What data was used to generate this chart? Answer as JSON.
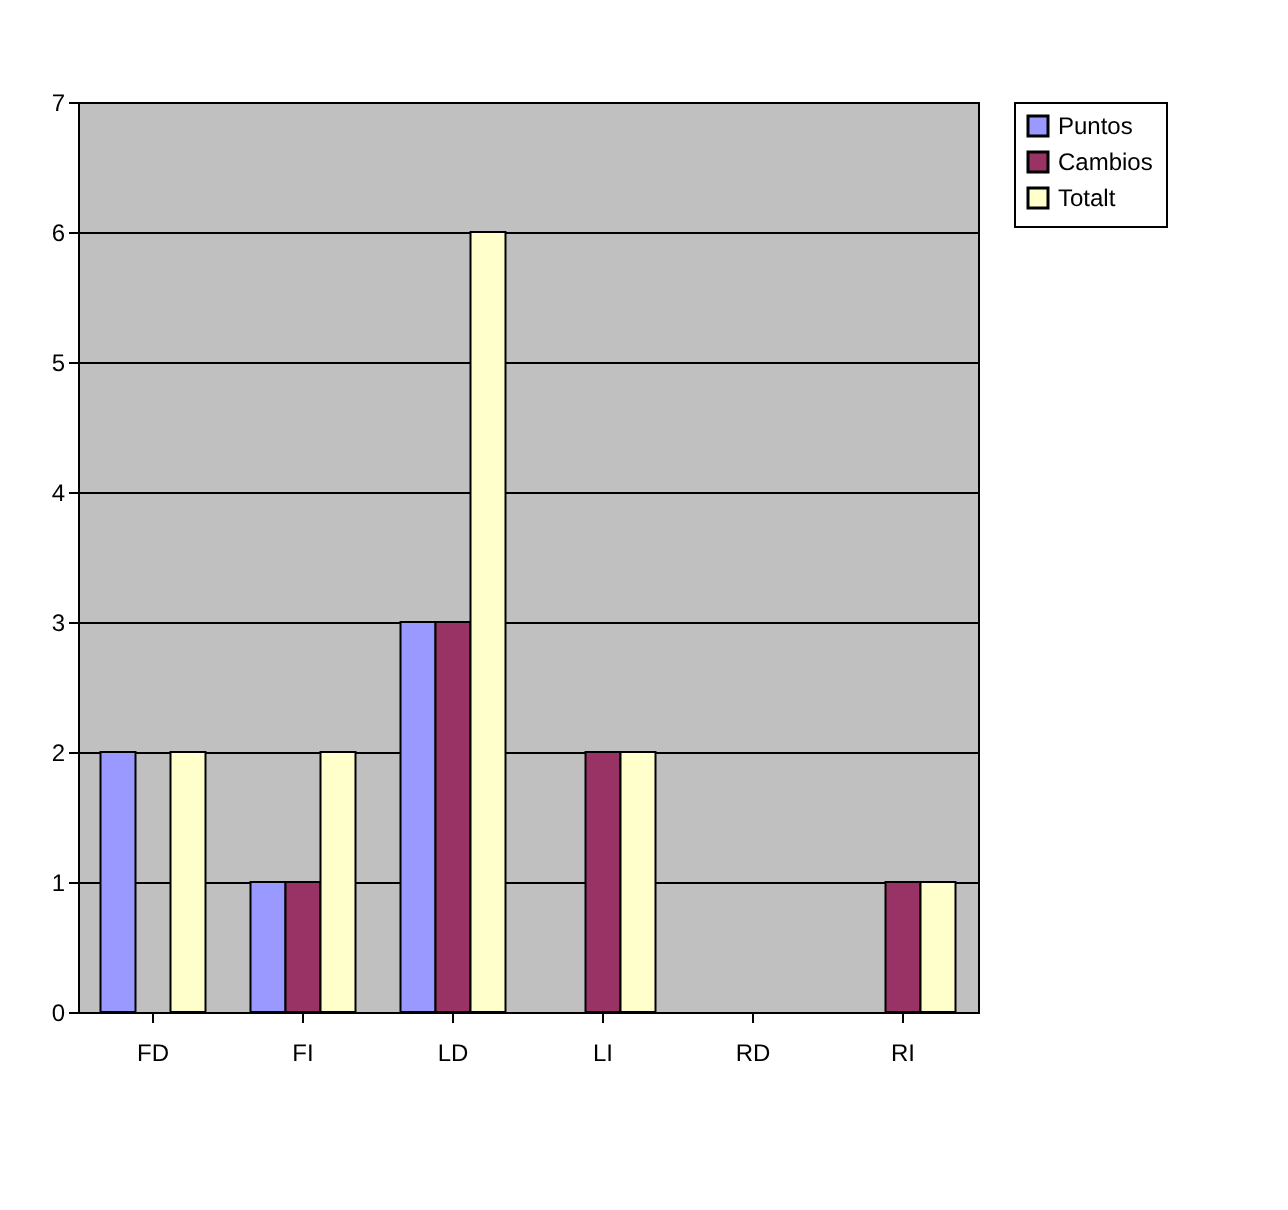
{
  "chart_data": {
    "type": "bar",
    "categories": [
      "FD",
      "FI",
      "LD",
      "LI",
      "RD",
      "RI"
    ],
    "series": [
      {
        "name": "Puntos",
        "color": "#9999ff",
        "values": [
          2,
          1,
          3,
          0,
          0,
          0
        ]
      },
      {
        "name": "Cambios",
        "color": "#993366",
        "values": [
          0,
          1,
          3,
          2,
          0,
          1
        ]
      },
      {
        "name": "Totalt",
        "color": "#ffffcc",
        "values": [
          2,
          2,
          6,
          2,
          0,
          1
        ]
      }
    ],
    "ylim": [
      0,
      7
    ],
    "yticks": [
      0,
      1,
      2,
      3,
      4,
      5,
      6,
      7
    ],
    "grid": "y",
    "legend": "right"
  }
}
